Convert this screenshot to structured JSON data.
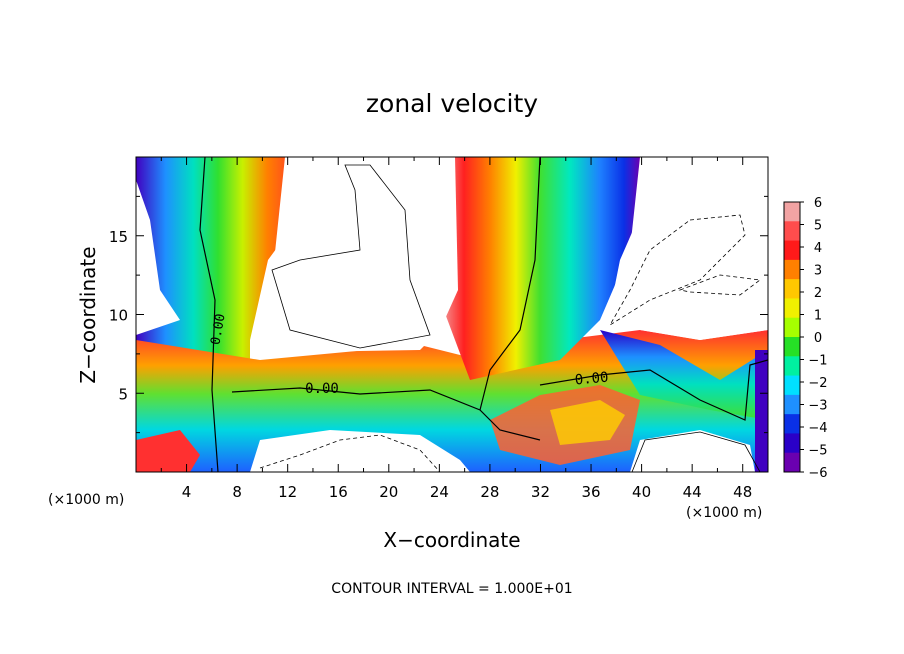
{
  "chart_data": {
    "type": "heatmap",
    "title": "zonal velocity",
    "xlabel": "X−coordinate",
    "ylabel": "Z−coordinate",
    "x_unit": "(×1000 m)",
    "y_unit": "(×1000 m)",
    "footer": "CONTOUR INTERVAL = 1.000E+01",
    "xlim": [
      0,
      50
    ],
    "ylim": [
      0,
      20
    ],
    "x_ticks": [
      "4",
      "8",
      "12",
      "16",
      "20",
      "24",
      "28",
      "32",
      "36",
      "40",
      "44",
      "48"
    ],
    "y_ticks": [
      "5",
      "10",
      "15"
    ],
    "colorbar": {
      "range": [
        -6,
        6
      ],
      "labels": [
        "6",
        "5",
        "4",
        "3",
        "2",
        "1",
        "0",
        "−1",
        "−2",
        "−3",
        "−4",
        "−5",
        "−6"
      ],
      "colors": [
        "#f2a3a3",
        "#ff4d4d",
        "#ff1a1a",
        "#ff8000",
        "#ffc800",
        "#f0f000",
        "#a6ff00",
        "#26e026",
        "#00f0a0",
        "#00e0ff",
        "#1e90ff",
        "#0a30e6",
        "#2a00c8",
        "#6a00b0"
      ]
    },
    "contour_labels": [
      "0.00",
      "0.00",
      "0.00"
    ],
    "legend": "none",
    "grid": false
  }
}
